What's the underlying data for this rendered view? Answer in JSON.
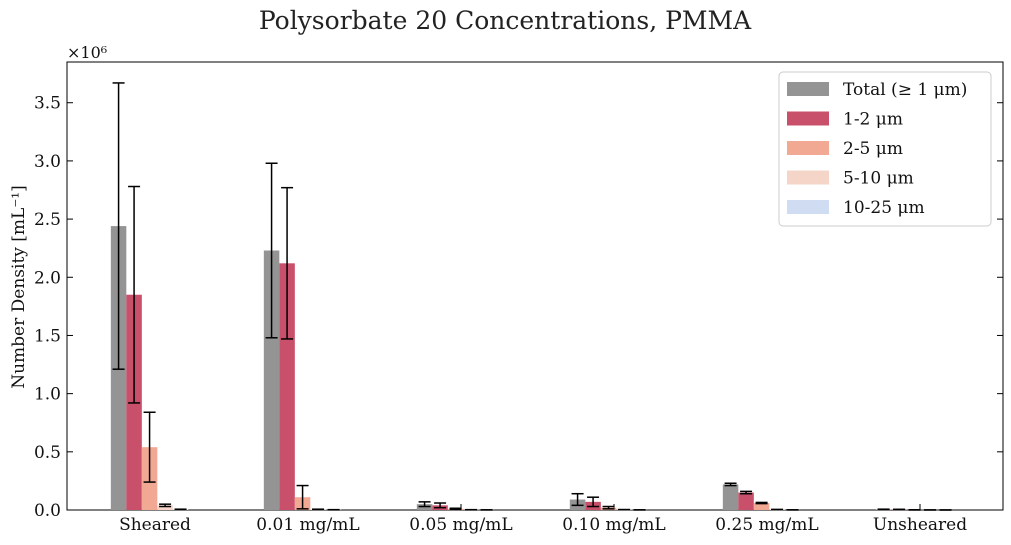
{
  "chart_data": {
    "type": "bar",
    "title": "Polysorbate 20 Concentrations, PMMA",
    "xlabel": "",
    "ylabel": "Number Density [mL⁻¹]",
    "y_multiplier_label": "×10⁶",
    "ylim": [
      0,
      3.85
    ],
    "yticks": [
      "0.0",
      "0.5",
      "1.0",
      "1.5",
      "2.0",
      "2.5",
      "3.0",
      "3.5"
    ],
    "categories": [
      "Sheared",
      "0.01 mg/mL",
      "0.05 mg/mL",
      "0.10 mg/mL",
      "0.25 mg/mL",
      "Unsheared"
    ],
    "legend_position": "top-right",
    "grid": false,
    "series": [
      {
        "name": "Total (≥ 1 μm)",
        "color": "#949494",
        "values": [
          2.44,
          2.23,
          0.05,
          0.09,
          0.22,
          0.005
        ],
        "errors": [
          1.23,
          0.75,
          0.02,
          0.05,
          0.01,
          0.002
        ]
      },
      {
        "name": "1-2 μm",
        "color": "#c8506a",
        "values": [
          1.85,
          2.12,
          0.04,
          0.07,
          0.15,
          0.004
        ],
        "errors": [
          0.93,
          0.65,
          0.02,
          0.04,
          0.01,
          0.002
        ]
      },
      {
        "name": "2-5 μm",
        "color": "#f2a994",
        "values": [
          0.54,
          0.11,
          0.01,
          0.02,
          0.06,
          0.001
        ],
        "errors": [
          0.3,
          0.1,
          0.005,
          0.01,
          0.005,
          0.001
        ]
      },
      {
        "name": "5-10 μm",
        "color": "#f5d5c8",
        "values": [
          0.04,
          0.005,
          0.002,
          0.003,
          0.004,
          0.0005
        ],
        "errors": [
          0.01,
          0.002,
          0.001,
          0.001,
          0.001,
          0.0003
        ]
      },
      {
        "name": "10-25 μm",
        "color": "#cfdcf2",
        "values": [
          0.005,
          0.002,
          0.001,
          0.001,
          0.001,
          0.0003
        ],
        "errors": [
          0.002,
          0.001,
          0.0005,
          0.0005,
          0.0005,
          0.0002
        ]
      }
    ]
  }
}
